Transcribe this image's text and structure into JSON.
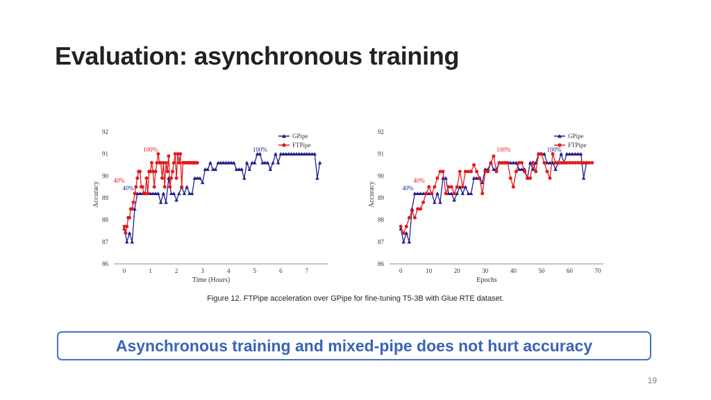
{
  "slide": {
    "title": "Evaluation: asynchronous training",
    "caption": "Figure 12. FTPipe acceleration over GPipe for fine-tuning T5-3B with Glue RTE dataset.",
    "callout": "Asynchronous training and mixed-pipe does not hurt accuracy",
    "page_number": "19"
  },
  "colors": {
    "gpipe": "#1f1f8c",
    "ftpipe": "#e31a1c",
    "callout_border": "#4472c4",
    "callout_text": "#3a63b8"
  },
  "chart_data": [
    {
      "type": "line",
      "xlabel": "Time (Hours)",
      "ylabel": "Accuracy",
      "xlim": [
        -0.4,
        7.8
      ],
      "ylim": [
        86,
        92
      ],
      "xticks": [
        0,
        1,
        2,
        3,
        4,
        5,
        6,
        7
      ],
      "yticks": [
        86,
        87,
        88,
        89,
        90,
        91,
        92
      ],
      "legend_position": "top-right",
      "series": [
        {
          "name": "GPipe",
          "marker": "triangle",
          "x": [
            0.0,
            0.1,
            0.2,
            0.3,
            0.4,
            0.5,
            0.6,
            0.7,
            0.8,
            0.9,
            1.0,
            1.1,
            1.2,
            1.3,
            1.4,
            1.5,
            1.6,
            1.7,
            1.8,
            1.9,
            2.0,
            2.1,
            2.2,
            2.3,
            2.4,
            2.5,
            2.6,
            2.7,
            2.8,
            2.9,
            3.0,
            3.1,
            3.2,
            3.3,
            3.4,
            3.5,
            3.6,
            3.7,
            3.8,
            3.9,
            4.0,
            4.1,
            4.2,
            4.3,
            4.4,
            4.5,
            4.6,
            4.7,
            4.8,
            4.9,
            5.0,
            5.1,
            5.2,
            5.3,
            5.4,
            5.5,
            5.6,
            5.7,
            5.8,
            5.9,
            6.0,
            6.1,
            6.2,
            6.3,
            6.4,
            6.5,
            6.6,
            6.7,
            6.8,
            6.9,
            7.0,
            7.1,
            7.2,
            7.3,
            7.4,
            7.5
          ],
          "y": [
            87.6,
            87.0,
            87.4,
            87.0,
            88.5,
            89.2,
            89.2,
            89.2,
            89.2,
            89.2,
            89.2,
            89.2,
            89.2,
            89.2,
            88.8,
            89.2,
            88.8,
            89.9,
            89.2,
            89.2,
            88.9,
            89.2,
            89.5,
            89.2,
            89.5,
            89.2,
            89.2,
            89.9,
            89.9,
            89.9,
            89.7,
            90.3,
            90.3,
            90.6,
            90.3,
            90.3,
            90.6,
            90.6,
            90.6,
            90.6,
            90.6,
            90.6,
            90.6,
            90.3,
            90.3,
            90.3,
            89.9,
            90.6,
            90.3,
            90.6,
            90.6,
            91.0,
            91.0,
            90.6,
            90.6,
            90.6,
            90.3,
            90.6,
            91.0,
            90.6,
            91.0,
            91.0,
            91.0,
            91.0,
            91.0,
            91.0,
            91.0,
            91.0,
            91.0,
            91.0,
            91.0,
            91.0,
            91.0,
            91.0,
            89.9,
            90.6
          ]
        },
        {
          "name": "FTPipe",
          "marker": "circle",
          "x": [
            0.0,
            0.05,
            0.1,
            0.15,
            0.2,
            0.25,
            0.3,
            0.35,
            0.4,
            0.45,
            0.5,
            0.55,
            0.6,
            0.65,
            0.7,
            0.75,
            0.8,
            0.85,
            0.9,
            0.95,
            1.0,
            1.05,
            1.1,
            1.15,
            1.2,
            1.25,
            1.3,
            1.35,
            1.4,
            1.45,
            1.5,
            1.55,
            1.6,
            1.65,
            1.7,
            1.75,
            1.8,
            1.85,
            1.9,
            1.95,
            2.0,
            2.05,
            2.1,
            2.15,
            2.2,
            2.25,
            2.3,
            2.35,
            2.4,
            2.45,
            2.5,
            2.55,
            2.6,
            2.65,
            2.7,
            2.75,
            2.8
          ],
          "y": [
            87.7,
            87.4,
            87.7,
            88.1,
            88.1,
            88.5,
            88.5,
            88.8,
            89.2,
            89.5,
            89.9,
            90.2,
            90.2,
            89.5,
            89.5,
            89.2,
            89.2,
            89.9,
            89.2,
            90.2,
            90.2,
            90.6,
            90.2,
            89.5,
            90.2,
            90.6,
            91.0,
            90.6,
            90.6,
            89.9,
            90.6,
            89.5,
            90.6,
            90.2,
            90.9,
            89.5,
            89.9,
            90.2,
            90.6,
            91.0,
            89.9,
            91.0,
            90.6,
            91.0,
            89.5,
            90.6,
            90.6,
            90.6,
            90.6,
            90.6,
            90.6,
            90.6,
            90.6,
            90.6,
            90.6,
            90.6,
            90.6
          ]
        }
      ],
      "annotations": [
        {
          "text": "100%",
          "series": "FTPipe",
          "x": 1.0,
          "y": 91.1
        },
        {
          "text": "100%",
          "series": "GPipe",
          "x": 5.2,
          "y": 91.1
        },
        {
          "text": "40%",
          "series": "FTPipe",
          "x": -0.2,
          "y": 89.7
        },
        {
          "text": "40%",
          "series": "GPipe",
          "x": 0.15,
          "y": 89.35
        }
      ]
    },
    {
      "type": "line",
      "xlabel": "Epochs",
      "ylabel": "Accuracy",
      "xlim": [
        -4,
        72
      ],
      "ylim": [
        86,
        92
      ],
      "xticks": [
        0,
        10,
        20,
        30,
        40,
        50,
        60,
        70
      ],
      "yticks": [
        86,
        87,
        88,
        89,
        90,
        91,
        92
      ],
      "legend_position": "top-right",
      "series": [
        {
          "name": "GPipe",
          "marker": "triangle",
          "x": [
            0,
            1,
            2,
            3,
            4,
            5,
            6,
            7,
            8,
            9,
            10,
            11,
            12,
            13,
            14,
            15,
            16,
            17,
            18,
            19,
            20,
            21,
            22,
            23,
            24,
            25,
            26,
            27,
            28,
            29,
            30,
            31,
            32,
            33,
            34,
            35,
            36,
            37,
            38,
            39,
            40,
            41,
            42,
            43,
            44,
            45,
            46,
            47,
            48,
            49,
            50,
            51,
            52,
            53,
            54,
            55,
            56,
            57,
            58,
            59,
            60,
            61,
            62,
            63,
            64,
            65,
            66
          ],
          "y": [
            87.6,
            87.0,
            87.4,
            87.0,
            88.5,
            89.2,
            89.2,
            89.2,
            89.2,
            89.2,
            89.2,
            89.2,
            88.8,
            89.2,
            88.8,
            89.9,
            89.9,
            89.2,
            89.2,
            88.9,
            89.2,
            89.5,
            89.2,
            89.5,
            89.2,
            89.2,
            89.9,
            89.9,
            89.9,
            89.7,
            90.3,
            90.3,
            90.6,
            90.3,
            90.3,
            90.6,
            90.6,
            90.6,
            90.6,
            90.6,
            90.6,
            90.6,
            90.3,
            90.3,
            90.3,
            89.9,
            90.6,
            90.3,
            90.6,
            91.0,
            91.0,
            91.0,
            90.6,
            90.6,
            90.6,
            90.3,
            90.6,
            91.0,
            90.6,
            91.0,
            91.0,
            91.0,
            91.0,
            91.0,
            91.0,
            89.9,
            90.6
          ]
        },
        {
          "name": "FTPipe",
          "marker": "circle",
          "x": [
            0,
            1,
            2,
            3,
            4,
            5,
            6,
            7,
            8,
            9,
            10,
            11,
            12,
            13,
            14,
            15,
            16,
            17,
            18,
            19,
            20,
            21,
            22,
            23,
            24,
            25,
            26,
            27,
            28,
            29,
            30,
            31,
            32,
            33,
            34,
            35,
            36,
            37,
            38,
            39,
            40,
            41,
            42,
            43,
            44,
            45,
            46,
            47,
            48,
            49,
            50,
            51,
            52,
            53,
            54,
            55,
            56,
            57,
            58,
            59,
            60,
            61,
            62,
            63,
            64,
            65,
            66,
            67,
            68
          ],
          "y": [
            87.7,
            87.4,
            87.7,
            88.1,
            88.4,
            88.1,
            88.5,
            88.5,
            88.8,
            89.2,
            89.5,
            89.2,
            89.5,
            89.9,
            90.2,
            90.2,
            89.2,
            89.5,
            89.5,
            89.2,
            89.5,
            90.2,
            89.5,
            90.2,
            90.2,
            90.2,
            90.5,
            90.2,
            89.9,
            89.2,
            90.2,
            90.2,
            90.6,
            90.9,
            90.2,
            90.6,
            90.6,
            90.6,
            90.6,
            89.9,
            89.5,
            90.2,
            90.6,
            90.6,
            90.2,
            89.9,
            89.9,
            90.6,
            90.2,
            91.0,
            91.0,
            90.6,
            90.2,
            89.9,
            91.0,
            90.6,
            90.6,
            90.6,
            90.6,
            90.6,
            90.6,
            90.6,
            90.6,
            90.6,
            90.6,
            90.6,
            90.6,
            90.6,
            90.6
          ]
        }
      ],
      "annotations": [
        {
          "text": "100%",
          "series": "FTPipe",
          "x": 36.5,
          "y": 91.1
        },
        {
          "text": "100%",
          "series": "GPipe",
          "x": 54.5,
          "y": 91.1
        },
        {
          "text": "40%",
          "series": "FTPipe",
          "x": 6.5,
          "y": 89.7
        },
        {
          "text": "40%",
          "series": "GPipe",
          "x": 2.5,
          "y": 89.35
        }
      ]
    }
  ]
}
